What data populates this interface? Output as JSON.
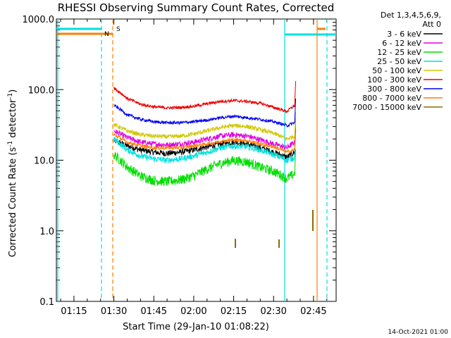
{
  "chart_data": {
    "type": "line",
    "title": "RHESSI Observing Summary Count Rates, Corrected",
    "xlabel": "Start Time (29-Jan-10 01:08:22)",
    "ylabel": "Corrected Count Rate (s⁻¹ detector⁻¹)",
    "ylabel_main": "Corrected Count Rate (s",
    "ylabel_sup1": "-1",
    "ylabel_mid": " detector",
    "ylabel_sup2": "-1",
    "ylabel_end": ")",
    "yscale": "log",
    "ylim": [
      0.1,
      1000
    ],
    "xlim_minutes": [
      68.4,
      173.5
    ],
    "xticks": [
      {
        "label": "01:15",
        "minutes": 75
      },
      {
        "label": "01:30",
        "minutes": 90
      },
      {
        "label": "01:45",
        "minutes": 105
      },
      {
        "label": "02:00",
        "minutes": 120
      },
      {
        "label": "02:15",
        "minutes": 135
      },
      {
        "label": "02:30",
        "minutes": 150
      },
      {
        "label": "02:45",
        "minutes": 165
      }
    ],
    "yticks": [
      {
        "label": "0.1",
        "value": 0.1
      },
      {
        "label": "1.0",
        "value": 1
      },
      {
        "label": "10.0",
        "value": 10
      },
      {
        "label": "100.0",
        "value": 100
      },
      {
        "label": "1000.0",
        "value": 1000
      }
    ],
    "legend": {
      "header1": "Det 1,3,4,5,6,9,",
      "header2": "Att 0",
      "placement": "right"
    },
    "series": [
      {
        "name": "3 - 6 keV",
        "color": "#000000",
        "x": [
          90,
          95,
          100,
          105,
          110,
          115,
          120,
          125,
          130,
          135,
          140,
          145,
          150,
          155,
          158
        ],
        "y": [
          19,
          16,
          14,
          13,
          12.5,
          13,
          14,
          15.5,
          17,
          18,
          17,
          15,
          13,
          11,
          13
        ],
        "noise": 0.1
      },
      {
        "name": "6 - 12 keV",
        "color": "#dd00dd",
        "x": [
          90,
          95,
          100,
          105,
          110,
          115,
          120,
          125,
          130,
          135,
          140,
          145,
          150,
          155,
          158
        ],
        "y": [
          26,
          21,
          18,
          17,
          16.5,
          17,
          18,
          20,
          22,
          23,
          22,
          19.5,
          17,
          15,
          18
        ],
        "noise": 0.09
      },
      {
        "name": "12 - 25 keV",
        "color": "#00dd00",
        "x": [
          90,
          95,
          100,
          105,
          110,
          115,
          120,
          125,
          130,
          135,
          140,
          145,
          150,
          155,
          158
        ],
        "y": [
          12,
          8,
          6,
          5.2,
          5,
          5.3,
          6,
          7.5,
          9,
          10,
          9.5,
          8,
          7,
          5.5,
          6.5
        ],
        "noise": 0.16
      },
      {
        "name": "25 - 50 keV",
        "color": "#00e0e0",
        "x": [
          90,
          95,
          100,
          105,
          110,
          115,
          120,
          125,
          130,
          135,
          140,
          145,
          150,
          155,
          158
        ],
        "y": [
          20,
          14,
          11.5,
          10.5,
          10,
          10.5,
          11.5,
          13,
          15,
          16,
          15.5,
          14,
          12,
          10,
          11
        ],
        "noise": 0.1
      },
      {
        "name": "50 - 100 keV",
        "color": "#d0c800",
        "x": [
          90,
          95,
          100,
          105,
          110,
          115,
          120,
          125,
          130,
          135,
          140,
          145,
          150,
          155,
          158
        ],
        "y": [
          32,
          26,
          23,
          22,
          21.5,
          22,
          23.5,
          26,
          29,
          31,
          30,
          27,
          24,
          20,
          22
        ],
        "noise": 0.07
      },
      {
        "name": "100 - 300 keV",
        "color": "#ee0000",
        "x": [
          90,
          95,
          100,
          105,
          110,
          115,
          120,
          125,
          130,
          135,
          140,
          145,
          150,
          155,
          158
        ],
        "y": [
          105,
          75,
          62,
          57,
          55,
          56,
          58,
          63,
          68,
          70,
          68,
          64,
          56,
          49,
          60
        ],
        "noise": 0.05
      },
      {
        "name": "300 - 800 keV",
        "color": "#0000ee",
        "x": [
          90,
          95,
          100,
          105,
          110,
          115,
          120,
          125,
          130,
          135,
          140,
          145,
          150,
          155,
          158
        ],
        "y": [
          60,
          44,
          38,
          35,
          34,
          34,
          35,
          37,
          40,
          42,
          40,
          38,
          35,
          31,
          34
        ],
        "noise": 0.05
      },
      {
        "name": "800 - 7000 keV",
        "color": "#ff7f00",
        "x": [
          90,
          95,
          100,
          105,
          110,
          115,
          120,
          125,
          130,
          135,
          140,
          145,
          150,
          155,
          158
        ],
        "y": [
          23,
          18,
          16,
          15,
          15,
          15,
          16,
          17,
          18.5,
          19.5,
          19,
          17,
          15.5,
          13,
          14
        ],
        "noise": 0.06
      },
      {
        "name": "7000 - 15000 keV",
        "color": "#8b6b00",
        "x": [],
        "y": [],
        "noise": 0
      }
    ],
    "markers": [
      {
        "label": "N",
        "color": "#00e0e0"
      },
      {
        "label": "S",
        "color": "#ff7f00"
      }
    ],
    "timestamp": "14-Oct-2021 01:00"
  }
}
